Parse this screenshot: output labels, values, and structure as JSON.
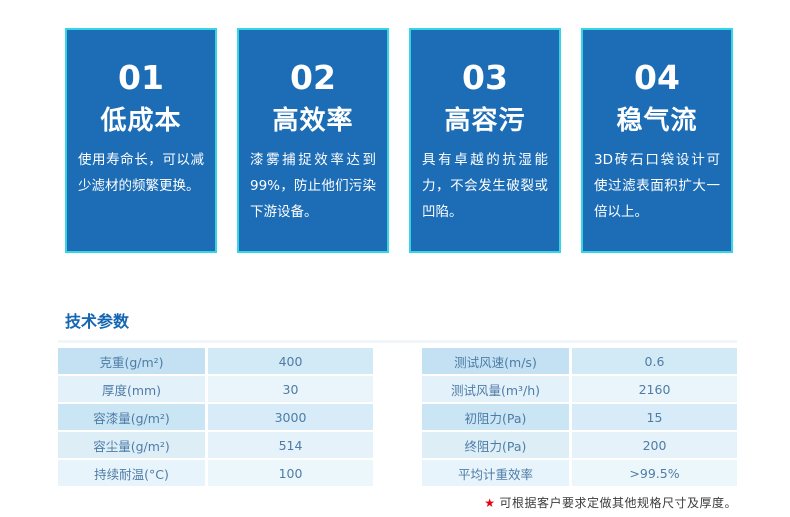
{
  "colors": {
    "card_background": "#1c6db6",
    "card_border": "#35d5e5",
    "section_title": "#1566b0",
    "table_text": "#4f7ca6",
    "table_row_dark": "#c3e1f2",
    "table_row_light": "#e9f4fb",
    "footnote_star": "#e60012"
  },
  "cards": [
    {
      "number": "01",
      "title": "低成本",
      "description": "使用寿命长，可以减少滤材的频繁更换。"
    },
    {
      "number": "02",
      "title": "高效率",
      "description": "漆雾捕捉效率达到99%，防止他们污染下游设备。"
    },
    {
      "number": "03",
      "title": "高容污",
      "description": "具有卓越的抗湿能力，不会发生破裂或凹陷。"
    },
    {
      "number": "04",
      "title": "稳气流",
      "description": "3D砖石口袋设计可使过滤表面积扩大一倍以上。"
    }
  ],
  "section": {
    "title": "技术参数"
  },
  "tables": {
    "left": {
      "rows": [
        {
          "label": "克重(g/m²)",
          "value": "400"
        },
        {
          "label": "厚度(mm)",
          "value": "30"
        },
        {
          "label": "容漆量(g/m²)",
          "value": "3000"
        },
        {
          "label": "容尘量(g/m²)",
          "value": "514"
        },
        {
          "label": "持续耐温(°C)",
          "value": "100"
        }
      ]
    },
    "right": {
      "rows": [
        {
          "label": "测试风速(m/s)",
          "value": "0.6"
        },
        {
          "label": "测试风量(m³/h)",
          "value": "2160"
        },
        {
          "label": "初阻力(Pa)",
          "value": "15"
        },
        {
          "label": "终阻力(Pa)",
          "value": "200"
        },
        {
          "label": "平均计重效率",
          "value": ">99.5%"
        }
      ]
    }
  },
  "footnote": {
    "star": "★",
    "text": "可根据客户要求定做其他规格尺寸及厚度。"
  }
}
